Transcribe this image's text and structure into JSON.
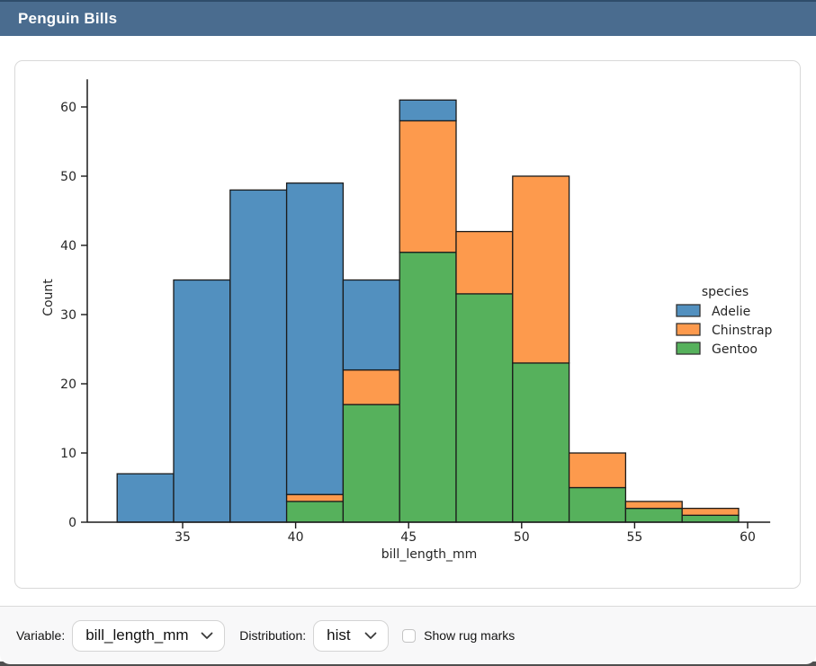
{
  "window": {
    "title": "Penguin Bills",
    "header_bg": "#4a6c8f"
  },
  "controls": {
    "variable_label": "Variable:",
    "variable_value": "bill_length_mm",
    "distribution_label": "Distribution:",
    "distribution_value": "hist",
    "rug_label": "Show rug marks",
    "rug_checked": false
  },
  "chart_data": {
    "type": "bar",
    "subtype": "stacked-histogram",
    "xlabel": "bill_length_mm",
    "ylabel": "Count",
    "legend_title": "species",
    "legend_position": "right",
    "grid": false,
    "bin_edges": [
      32.1,
      34.6,
      37.1,
      39.6,
      42.1,
      44.6,
      47.1,
      49.6,
      52.1,
      54.6,
      57.1,
      59.6
    ],
    "x_ticks": [
      35,
      40,
      45,
      50,
      55,
      60
    ],
    "y_ticks": [
      0,
      10,
      20,
      30,
      40,
      50,
      60
    ],
    "xlim": [
      30.8,
      61.0
    ],
    "ylim": [
      0,
      64
    ],
    "series": [
      {
        "name": "Adelie",
        "color": "#5290bf",
        "values": [
          7,
          35,
          48,
          45,
          13,
          3,
          0,
          0,
          0,
          0,
          0
        ]
      },
      {
        "name": "Chinstrap",
        "color": "#fd9a4d",
        "values": [
          0,
          0,
          0,
          1,
          5,
          19,
          9,
          27,
          5,
          1,
          1
        ]
      },
      {
        "name": "Gentoo",
        "color": "#56b15c",
        "values": [
          0,
          0,
          0,
          3,
          17,
          39,
          33,
          23,
          5,
          2,
          1
        ]
      }
    ],
    "stack_bottom_to_top": [
      "Gentoo",
      "Chinstrap",
      "Adelie"
    ],
    "bin_totals": [
      7,
      35,
      48,
      49,
      35,
      61,
      42,
      50,
      10,
      3,
      2
    ],
    "edge_color": "#1b1b1b",
    "axis_color": "#1a1a1a"
  }
}
